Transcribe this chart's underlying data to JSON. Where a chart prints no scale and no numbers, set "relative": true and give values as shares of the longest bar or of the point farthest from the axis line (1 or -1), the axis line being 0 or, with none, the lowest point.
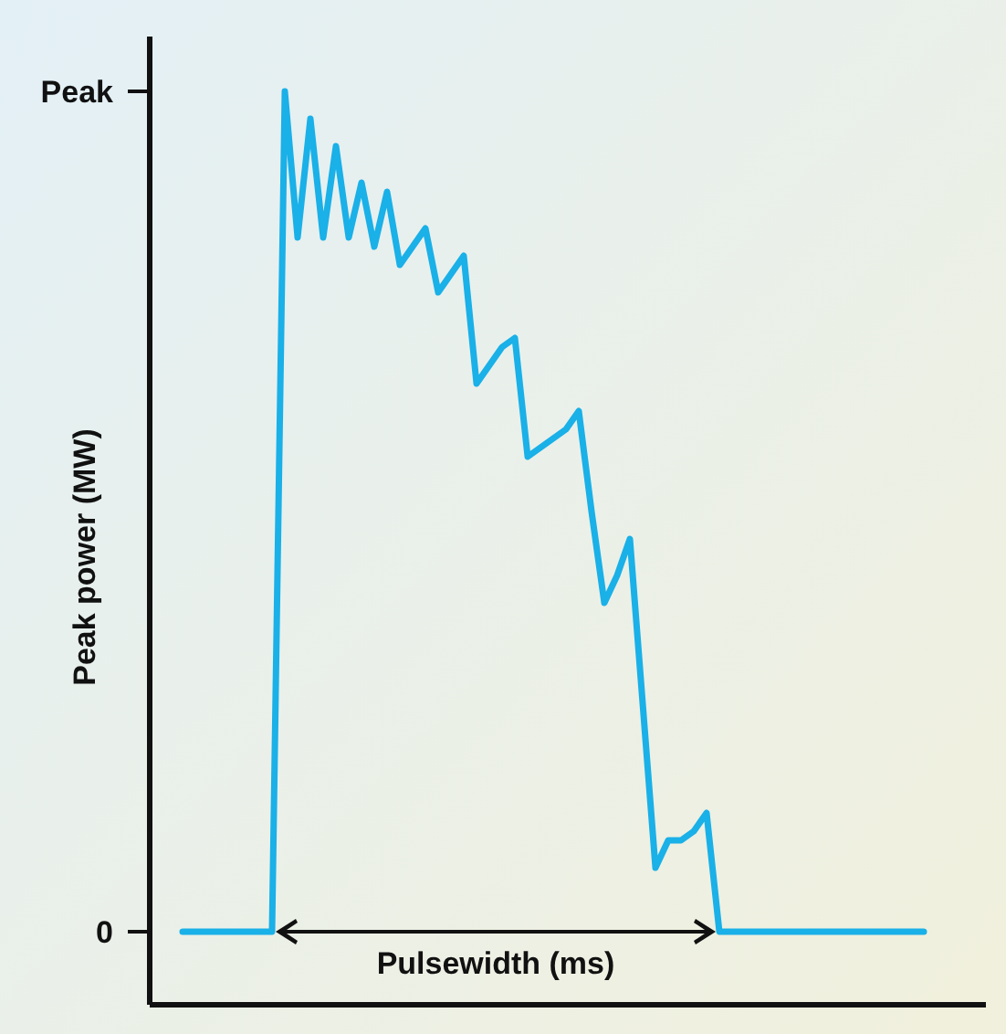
{
  "chart_data": {
    "type": "line",
    "ylabel": "Peak power (MW)",
    "xlabel": "Pulsewidth (ms)",
    "relative": true,
    "categories": [
      null,
      null,
      null,
      null,
      null,
      null,
      null,
      null,
      null,
      null,
      null,
      null,
      null,
      null,
      null,
      null,
      null,
      null,
      null,
      null,
      null,
      null,
      null,
      null,
      null,
      null,
      null,
      null,
      null,
      null,
      null,
      null,
      null,
      null,
      null,
      null,
      null,
      null,
      null,
      null,
      null,
      null,
      null,
      null,
      null,
      null,
      null,
      null,
      null,
      null,
      null,
      null,
      null,
      null,
      null,
      null,
      null,
      null,
      null
    ],
    "series": [
      {
        "color": "#1ab0e8",
        "values": [
          0.08,
          0.08,
          0.08,
          0.08,
          0.08,
          0.08,
          0.08,
          0.08,
          1,
          0.84,
          0.97,
          0.84,
          0.94,
          0.84,
          0.9,
          0.83,
          0.89,
          0.81,
          0.83,
          0.85,
          0.78,
          0.8,
          0.82,
          0.68,
          0.7,
          0.72,
          0.73,
          0.6,
          0.61,
          0.62,
          0.63,
          0.65,
          0.54,
          0.44,
          0.47,
          0.51,
          0.33,
          0.15,
          0.18,
          0.18,
          0.19,
          0.21,
          0.08,
          0.08,
          0.08,
          0.08,
          0.08,
          0.08,
          0.08,
          0.08,
          0.08,
          0.08,
          0.08,
          0.08,
          0.08,
          0.08,
          0.08,
          0.08,
          0.08
        ]
      }
    ],
    "annotations": [
      "Peak",
      "0"
    ],
    "grid": false,
    "marker": "none",
    "line_style": "solid"
  }
}
